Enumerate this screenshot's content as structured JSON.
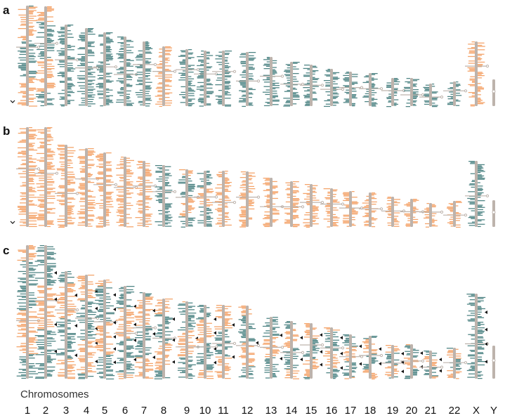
{
  "panels": [
    {
      "label": "a",
      "x_markers": [],
      "chrom_y": 23,
      "chrom_x": 23
    },
    {
      "label": "b",
      "x_markers": [],
      "chrom_y": 23,
      "chrom_x": 23
    },
    {
      "label": "c",
      "x_markers": [],
      "chrom_y": 23,
      "chrom_x": 23
    }
  ],
  "axis_title": "Chromosomes",
  "chromosomes": [
    "1",
    "2",
    "3",
    "4",
    "5",
    "6",
    "7",
    "8",
    "9",
    "10",
    "11",
    "12",
    "13",
    "14",
    "15",
    "16",
    "17",
    "18",
    "19",
    "20",
    "21",
    "22",
    "X",
    "Y"
  ],
  "panel_dominant": [
    [
      "mix",
      "mix",
      "teal",
      "teal",
      "teal",
      "teal",
      "teal",
      "orange",
      "teal",
      "teal",
      "teal",
      "teal",
      "teal",
      "teal",
      "teal",
      "teal",
      "teal",
      "teal",
      "teal",
      "teal",
      "teal",
      "teal",
      "orange",
      "grey"
    ],
    [
      "orange",
      "orange",
      "orange",
      "orange",
      "orange",
      "orange",
      "orange",
      "teal",
      "mix",
      "mix",
      "orange",
      "orange",
      "orange",
      "orange",
      "orange",
      "orange",
      "orange",
      "orange",
      "orange",
      "orange",
      "orange",
      "orange",
      "teal",
      "grey"
    ],
    [
      "mix",
      "mix",
      "mix",
      "mix",
      "mix",
      "mix",
      "mix",
      "mix",
      "mix",
      "mix",
      "mix",
      "mix",
      "mix",
      "mix",
      "mix",
      "mix",
      "mix",
      "mix",
      "mix",
      "mix",
      "mix",
      "mix",
      "teal",
      "grey"
    ]
  ],
  "arrowhead_counts": [
    0,
    4,
    3,
    5,
    6,
    4,
    3,
    3,
    1,
    4,
    2,
    1,
    2,
    2,
    3,
    3,
    2,
    2,
    3,
    2,
    2,
    0,
    4,
    0
  ],
  "colors": {
    "orange": "#f4a46a",
    "teal": "#4f8585",
    "grey": "#bdb3ac",
    "marker": "#111111"
  }
}
